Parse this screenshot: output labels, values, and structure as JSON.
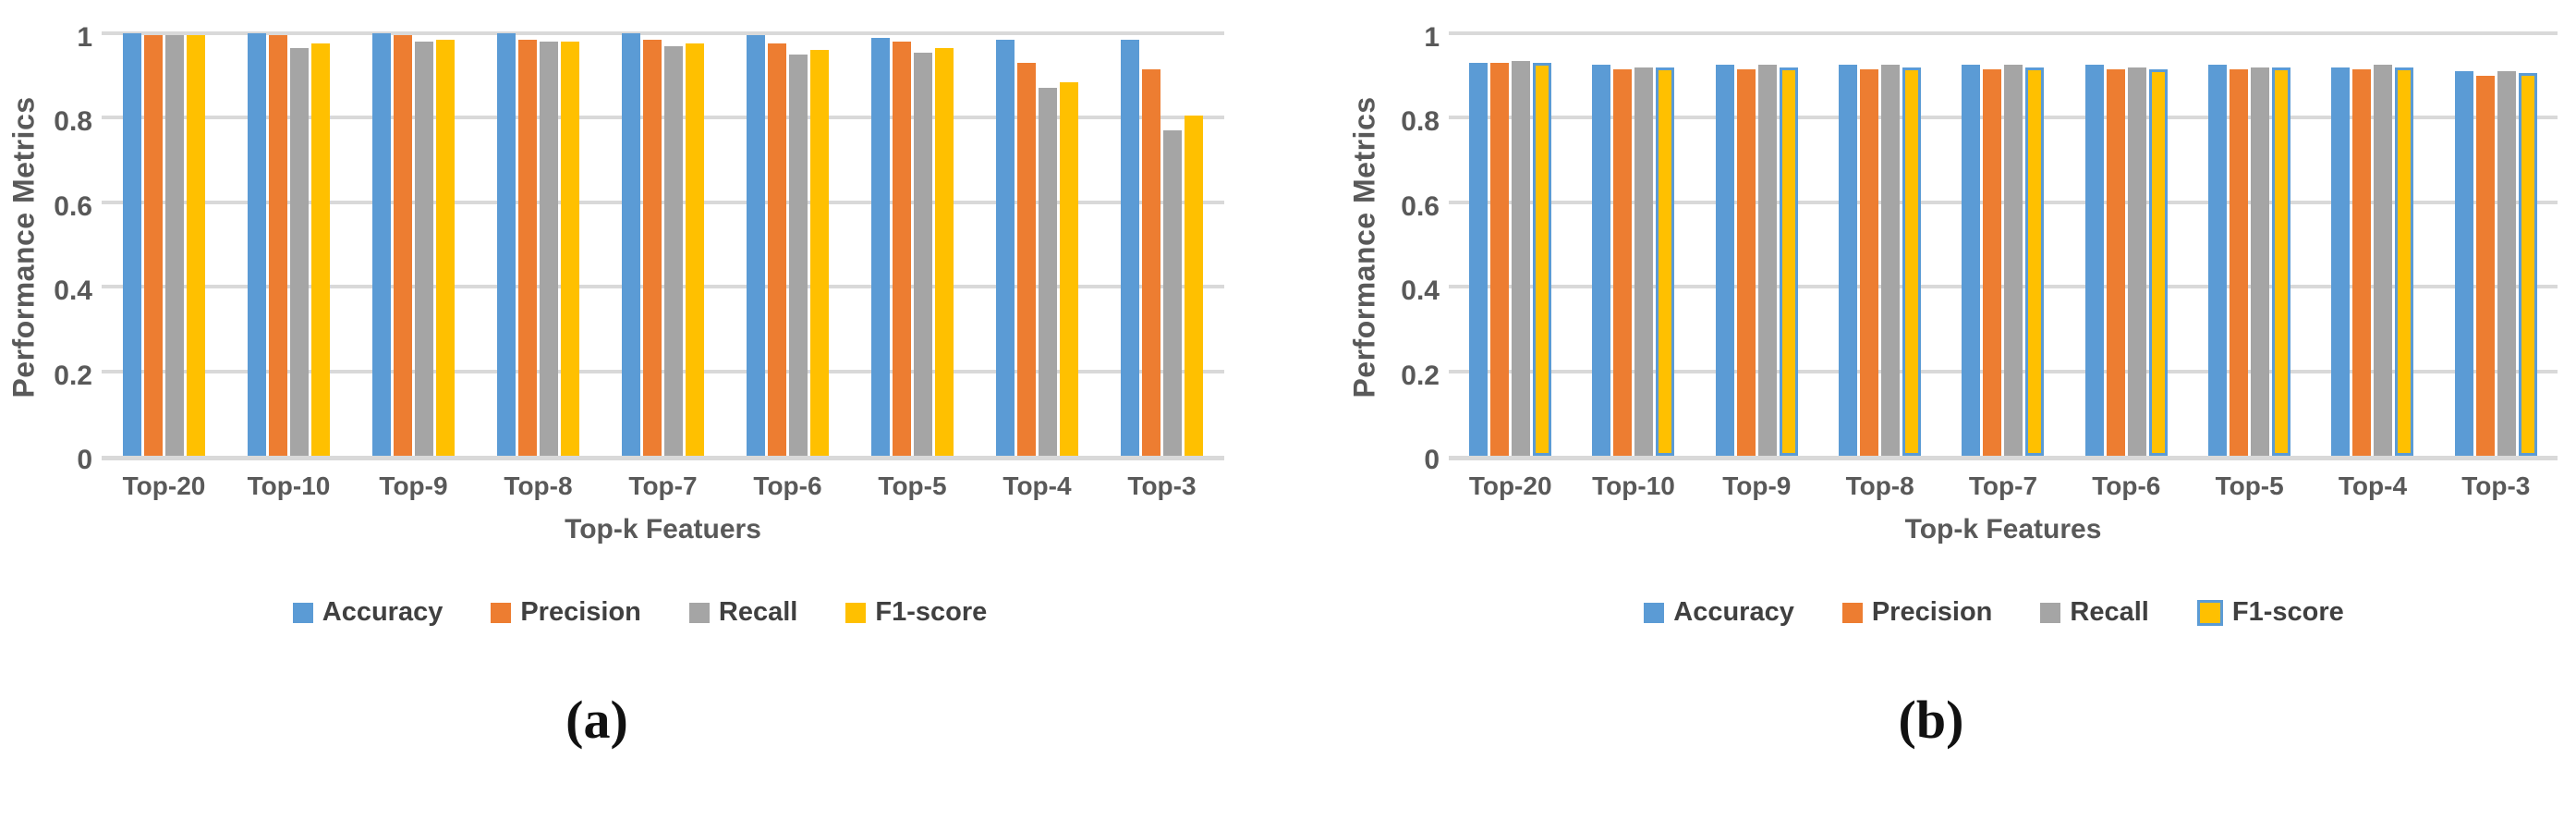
{
  "page": {
    "background": "#FFFFFF"
  },
  "colors": {
    "accuracy_blue": "#5B9BD5",
    "precision_orange": "#ED7D31",
    "recall_gray": "#A5A5A5",
    "f1_yellow": "#FFC000",
    "gridline": "#D9D9D9",
    "axis_text": "#595959"
  },
  "chart_data": [
    {
      "id": "a",
      "type": "bar",
      "caption": "(a)",
      "xlabel": "Top-k Featuers",
      "ylabel": "Performance Metrics",
      "categories": [
        "Top-20",
        "Top-10",
        "Top-9",
        "Top-8",
        "Top-7",
        "Top-6",
        "Top-5",
        "Top-4",
        "Top-3"
      ],
      "ylim": [
        0,
        1
      ],
      "yticks": [
        {
          "label": "0",
          "value": 0
        },
        {
          "label": "0.2",
          "value": 0.2
        },
        {
          "label": "0.4",
          "value": 0.4
        },
        {
          "label": "0.6",
          "value": 0.6
        },
        {
          "label": "0.8",
          "value": 0.8
        },
        {
          "label": "1",
          "value": 1
        }
      ],
      "grid": true,
      "legend_position": "bottom",
      "series": [
        {
          "name": "Accuracy",
          "color": "#5B9BD5",
          "values": [
            1.0,
            1.0,
            1.0,
            1.0,
            1.0,
            0.995,
            0.99,
            0.985,
            0.985
          ]
        },
        {
          "name": "Precision",
          "color": "#ED7D31",
          "values": [
            0.995,
            0.995,
            0.995,
            0.985,
            0.985,
            0.975,
            0.98,
            0.93,
            0.915
          ]
        },
        {
          "name": "Recall",
          "color": "#A5A5A5",
          "values": [
            0.995,
            0.965,
            0.98,
            0.98,
            0.97,
            0.95,
            0.955,
            0.87,
            0.77
          ]
        },
        {
          "name": "F1-score",
          "color": "#FFC000",
          "values": [
            0.995,
            0.975,
            0.985,
            0.98,
            0.975,
            0.96,
            0.965,
            0.885,
            0.805
          ]
        }
      ]
    },
    {
      "id": "b",
      "type": "bar",
      "caption": "(b)",
      "xlabel": "Top-k Features",
      "ylabel": "Performance Metrics",
      "categories": [
        "Top-20",
        "Top-10",
        "Top-9",
        "Top-8",
        "Top-7",
        "Top-6",
        "Top-5",
        "Top-4",
        "Top-3"
      ],
      "ylim": [
        0,
        1
      ],
      "yticks": [
        {
          "label": "0",
          "value": 0
        },
        {
          "label": "0.2",
          "value": 0.2
        },
        {
          "label": "0.4",
          "value": 0.4
        },
        {
          "label": "0.6",
          "value": 0.6
        },
        {
          "label": "0.8",
          "value": 0.8
        },
        {
          "label": "1",
          "value": 1
        }
      ],
      "grid": true,
      "legend_position": "bottom",
      "series": [
        {
          "name": "Accuracy",
          "color": "#5B9BD5",
          "values": [
            0.93,
            0.925,
            0.925,
            0.925,
            0.925,
            0.925,
            0.925,
            0.92,
            0.91
          ]
        },
        {
          "name": "Precision",
          "color": "#ED7D31",
          "values": [
            0.93,
            0.915,
            0.915,
            0.915,
            0.915,
            0.915,
            0.915,
            0.915,
            0.9
          ]
        },
        {
          "name": "Recall",
          "color": "#A5A5A5",
          "values": [
            0.935,
            0.92,
            0.925,
            0.925,
            0.925,
            0.92,
            0.92,
            0.925,
            0.91
          ]
        },
        {
          "name": "F1-score",
          "color": "#FFC000",
          "border_color": "#5B9BD5",
          "values": [
            0.93,
            0.92,
            0.92,
            0.92,
            0.92,
            0.915,
            0.92,
            0.92,
            0.905
          ]
        }
      ]
    }
  ]
}
